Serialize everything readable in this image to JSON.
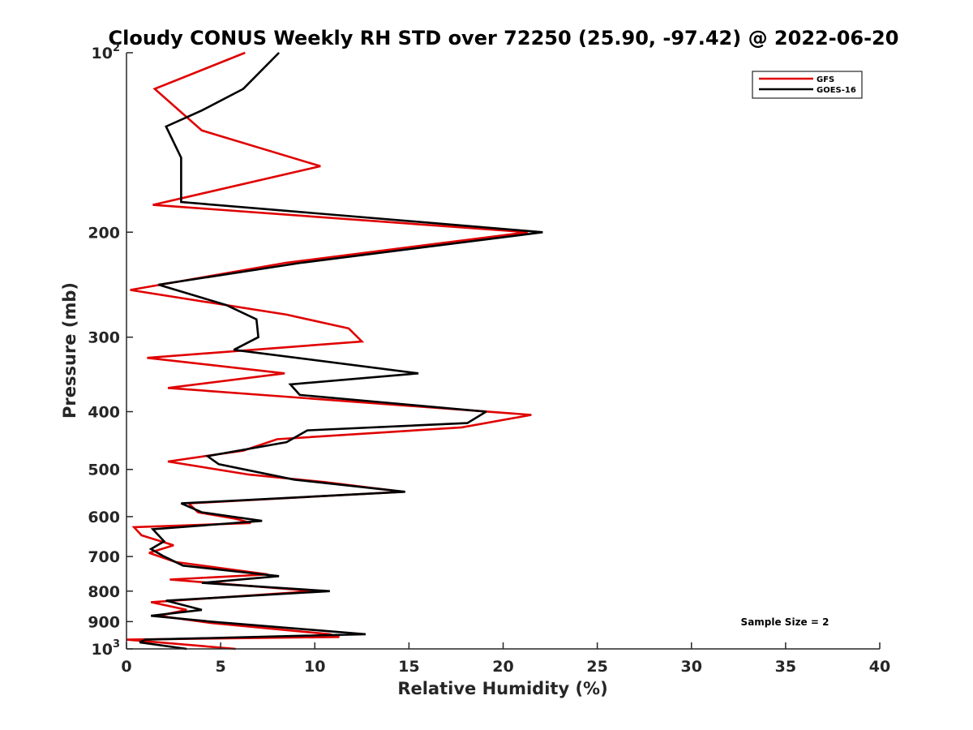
{
  "chart_data": {
    "type": "line",
    "title": "Cloudy CONUS Weekly RH STD over 72250 (25.90, -97.42) @ 2022-06-20",
    "xlabel": "Relative Humidity (%)",
    "ylabel": "Pressure (mb)",
    "xlim": [
      0,
      40
    ],
    "ylim": [
      100,
      1000
    ],
    "yscale": "log",
    "y_reversed": true,
    "x_ticks": [
      "0",
      "5",
      "10",
      "15",
      "20",
      "25",
      "30",
      "35",
      "40"
    ],
    "y_ticks": [
      {
        "value": 100,
        "base": "10",
        "exp": "2"
      },
      {
        "value": 200,
        "label": "200"
      },
      {
        "value": 300,
        "label": "300"
      },
      {
        "value": 400,
        "label": "400"
      },
      {
        "value": 500,
        "label": "500"
      },
      {
        "value": 600,
        "label": "600"
      },
      {
        "value": 700,
        "label": "700"
      },
      {
        "value": 800,
        "label": "800"
      },
      {
        "value": 900,
        "label": "900"
      },
      {
        "value": 1000,
        "base": "10",
        "exp": "3"
      }
    ],
    "legend_position": "top-right",
    "annotation": "Sample Size = 2",
    "series": [
      {
        "name": "GFS",
        "color": "#e00000",
        "points": [
          [
            6.3,
            100
          ],
          [
            1.5,
            115
          ],
          [
            4.0,
            135
          ],
          [
            10.3,
            155
          ],
          [
            1.4,
            180
          ],
          [
            21.3,
            200
          ],
          [
            8.5,
            225
          ],
          [
            0.2,
            250
          ],
          [
            8.5,
            275
          ],
          [
            11.8,
            290
          ],
          [
            12.5,
            305
          ],
          [
            1.1,
            325
          ],
          [
            8.4,
            345
          ],
          [
            2.2,
            365
          ],
          [
            21.5,
            405
          ],
          [
            17.8,
            425
          ],
          [
            8.0,
            445
          ],
          [
            6.2,
            465
          ],
          [
            2.2,
            485
          ],
          [
            6.5,
            510
          ],
          [
            10.5,
            525
          ],
          [
            14.7,
            545
          ],
          [
            3.3,
            570
          ],
          [
            3.8,
            590
          ],
          [
            5.8,
            605
          ],
          [
            6.6,
            615
          ],
          [
            0.4,
            625
          ],
          [
            0.8,
            645
          ],
          [
            2.5,
            670
          ],
          [
            1.2,
            690
          ],
          [
            2.6,
            715
          ],
          [
            7.5,
            750
          ],
          [
            2.3,
            765
          ],
          [
            10.0,
            800
          ],
          [
            1.3,
            835
          ],
          [
            3.2,
            860
          ],
          [
            1.7,
            880
          ],
          [
            4.5,
            905
          ],
          [
            10.8,
            945
          ],
          [
            11.3,
            955
          ],
          [
            0.0,
            965
          ],
          [
            5.8,
            1000
          ]
        ]
      },
      {
        "name": "GOES-16",
        "color": "#000000",
        "points": [
          [
            8.1,
            100
          ],
          [
            6.2,
            115
          ],
          [
            4.0,
            125
          ],
          [
            2.1,
            133
          ],
          [
            2.9,
            150
          ],
          [
            2.9,
            178
          ],
          [
            22.1,
            200
          ],
          [
            9.3,
            225
          ],
          [
            1.7,
            245
          ],
          [
            5.3,
            265
          ],
          [
            6.9,
            280
          ],
          [
            7.0,
            300
          ],
          [
            5.7,
            315
          ],
          [
            15.5,
            345
          ],
          [
            8.7,
            360
          ],
          [
            9.2,
            375
          ],
          [
            19.1,
            400
          ],
          [
            18.1,
            418
          ],
          [
            9.6,
            430
          ],
          [
            8.5,
            450
          ],
          [
            4.3,
            475
          ],
          [
            4.9,
            490
          ],
          [
            8.9,
            520
          ],
          [
            14.8,
            545
          ],
          [
            2.9,
            570
          ],
          [
            4.0,
            590
          ],
          [
            7.2,
            610
          ],
          [
            1.4,
            630
          ],
          [
            2.0,
            660
          ],
          [
            1.3,
            680
          ],
          [
            2.0,
            700
          ],
          [
            3.0,
            725
          ],
          [
            8.1,
            755
          ],
          [
            4.0,
            775
          ],
          [
            10.8,
            800
          ],
          [
            2.1,
            830
          ],
          [
            4.0,
            860
          ],
          [
            1.3,
            880
          ],
          [
            4.5,
            900
          ],
          [
            12.7,
            945
          ],
          [
            1.0,
            965
          ],
          [
            0.7,
            975
          ],
          [
            3.2,
            1000
          ]
        ]
      }
    ]
  }
}
